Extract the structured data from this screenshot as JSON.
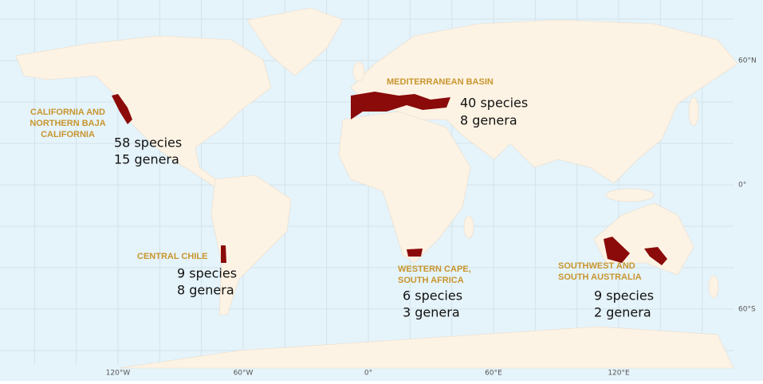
{
  "map": {
    "lon_labels": [
      "120°W",
      "60°W",
      "0°",
      "60°E",
      "120°E"
    ],
    "lat_labels": [
      "60°N",
      "0°",
      "60°S"
    ],
    "regions": [
      {
        "name_lines": [
          "CALIFORNIA AND",
          "NORTHERN BAJA",
          "CALIFORNIA"
        ],
        "species": "58 species",
        "genera": "15 genera"
      },
      {
        "name_lines": [
          "MEDITERRANEAN BASIN"
        ],
        "species": "40 species",
        "genera": "8 genera"
      },
      {
        "name_lines": [
          "CENTRAL CHILE"
        ],
        "species": "9 species",
        "genera": "8 genera"
      },
      {
        "name_lines": [
          "WESTERN CAPE,",
          "SOUTH AFRICA"
        ],
        "species": "6 species",
        "genera": "3 genera"
      },
      {
        "name_lines": [
          "SOUTHWEST AND",
          "SOUTH AUSTRALIA"
        ],
        "species": "9 species",
        "genera": "2 genera"
      }
    ]
  }
}
